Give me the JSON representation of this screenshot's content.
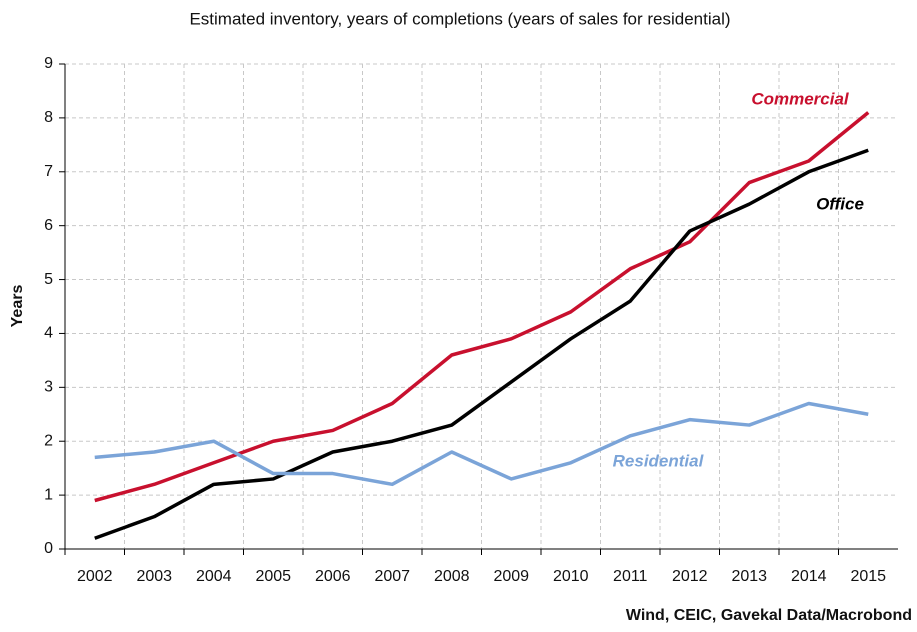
{
  "chart_data": {
    "type": "line",
    "title": "Estimated inventory, years of completions (years of sales for residential)",
    "ylabel": "Years",
    "source": "Wind, CEIC, Gavekal Data/Macrobond",
    "categories": [
      "2002",
      "2003",
      "2004",
      "2005",
      "2006",
      "2007",
      "2008",
      "2009",
      "2010",
      "2011",
      "2012",
      "2013",
      "2014",
      "2015"
    ],
    "series": [
      {
        "name": "Commercial",
        "color": "#c8102e",
        "values": [
          0.9,
          1.2,
          1.6,
          2.0,
          2.2,
          2.7,
          3.6,
          3.9,
          4.4,
          5.2,
          5.7,
          6.8,
          7.2,
          8.1
        ]
      },
      {
        "name": "Office",
        "color": "#000000",
        "values": [
          0.2,
          0.6,
          1.2,
          1.3,
          1.8,
          2.0,
          2.3,
          3.1,
          3.9,
          4.6,
          5.9,
          6.4,
          7.0,
          7.4
        ]
      },
      {
        "name": "Residential",
        "color": "#7ba4d8",
        "values": [
          1.7,
          1.8,
          2.0,
          1.4,
          1.4,
          1.2,
          1.8,
          1.3,
          1.6,
          2.1,
          2.4,
          2.3,
          2.7,
          2.5
        ]
      }
    ],
    "ylim": [
      0,
      9
    ],
    "yticks": [
      0,
      1,
      2,
      3,
      4,
      5,
      6,
      7,
      8,
      9
    ],
    "grid": true
  }
}
